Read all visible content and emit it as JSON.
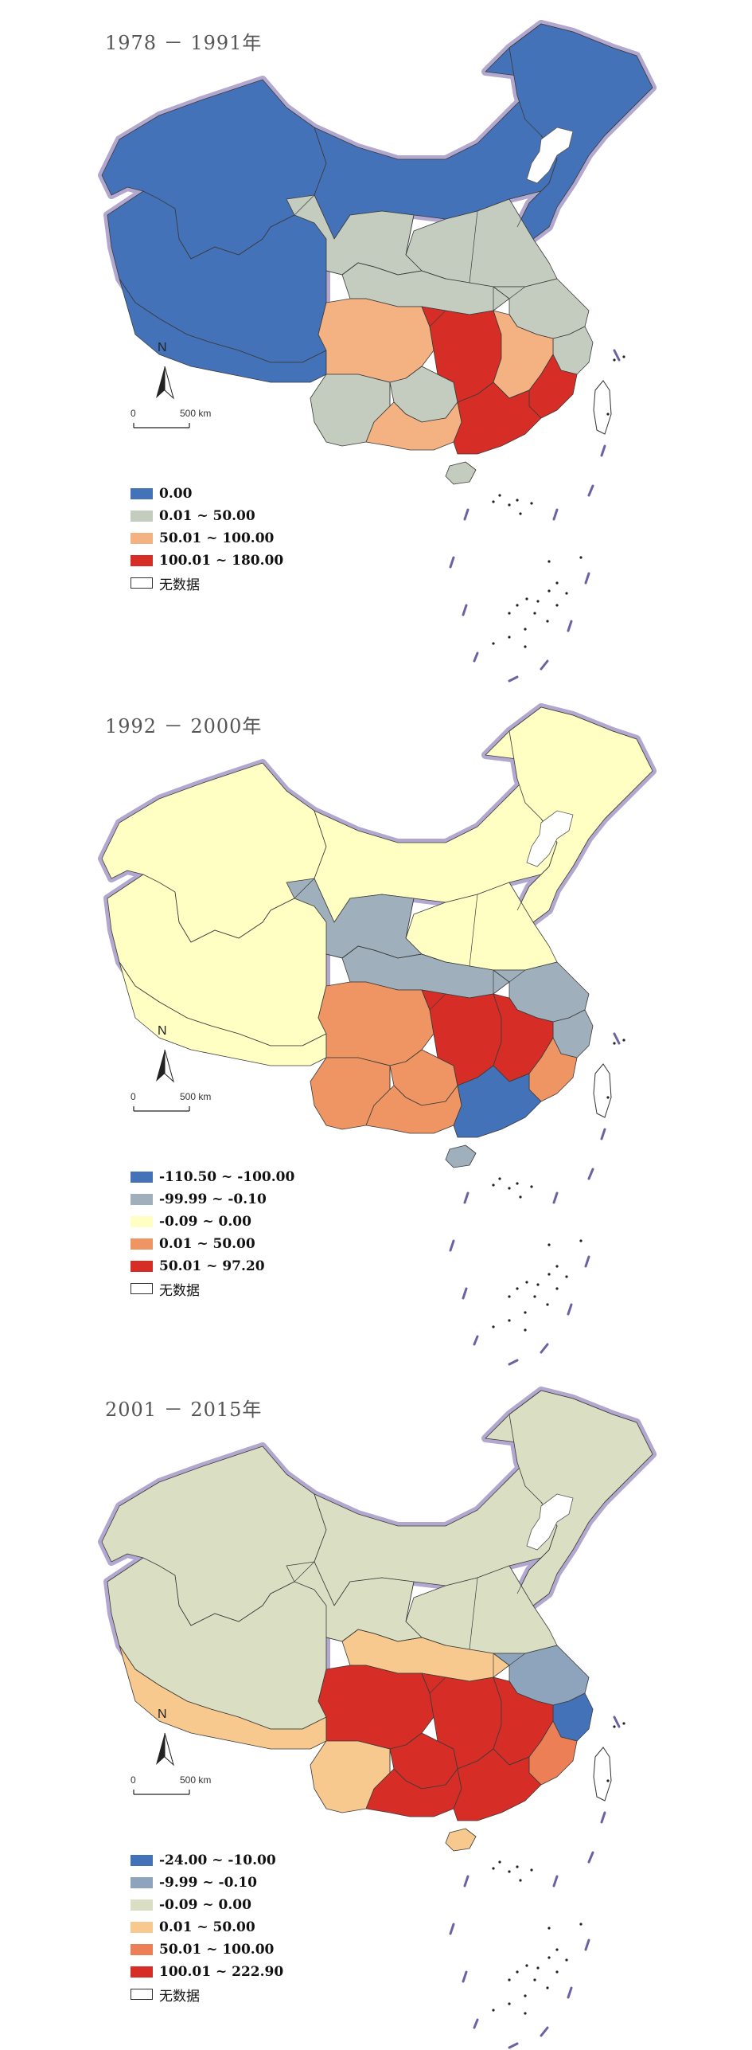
{
  "panels": [
    {
      "title": "1978 － 1991年",
      "legend": [
        {
          "label": "0.00",
          "color": "#4472b8"
        },
        {
          "label": "0.01 ~ 50.00",
          "color": "#c3ccbf"
        },
        {
          "label": "50.01 ~ 100.00",
          "color": "#f4b283"
        },
        {
          "label": "100.01 ~ 180.00",
          "color": "#d62e26"
        },
        {
          "label": "无数据",
          "color": "#ffffff"
        }
      ],
      "regions": {
        "west": "#4472b8",
        "north": "#4472b8",
        "northeast": "#4472b8",
        "northcentral": "#c3ccbf",
        "gansu": "#c3ccbf",
        "central": "#c3ccbf",
        "eastcoast": "#c3ccbf",
        "sichuan": "#f4b283",
        "yunnan": "#c3ccbf",
        "guizhou": "#c3ccbf",
        "hunan": "#d62e26",
        "jiangxi": "#f4b283",
        "fujian": "#d62e26",
        "guangxi": "#f4b283",
        "guangdong": "#d62e26",
        "hainan": "#c3ccbf"
      }
    },
    {
      "title": "1992 － 2000年",
      "legend": [
        {
          "label": "-110.50 ~ -100.00",
          "color": "#4472b8"
        },
        {
          "label": "-99.99 ~ -0.10",
          "color": "#9fb0bc"
        },
        {
          "label": "-0.09 ~ 0.00",
          "color": "#ffffc4"
        },
        {
          "label": "0.01 ~ 50.00",
          "color": "#ee9563"
        },
        {
          "label": "50.01 ~ 97.20",
          "color": "#d62e26"
        },
        {
          "label": "无数据",
          "color": "#ffffff"
        }
      ],
      "regions": {
        "west": "#ffffc4",
        "north": "#ffffc4",
        "northeast": "#ffffc4",
        "northcentral": "#ffffc4",
        "gansu": "#9fb0bc",
        "central": "#9fb0bc",
        "eastcoast": "#9fb0bc",
        "sichuan": "#ee9563",
        "yunnan": "#ee9563",
        "guizhou": "#ee9563",
        "hunan": "#d62e26",
        "jiangxi": "#d62e26",
        "fujian": "#ee9563",
        "guangxi": "#ee9563",
        "guangdong": "#4472b8",
        "hainan": "#9fb0bc"
      }
    },
    {
      "title": "2001 － 2015年",
      "legend": [
        {
          "label": "-24.00 ~ -10.00",
          "color": "#4472b8"
        },
        {
          "label": "-9.99 ~ -0.10",
          "color": "#8ea4bd"
        },
        {
          "label": "-0.09 ~ 0.00",
          "color": "#dadfc3"
        },
        {
          "label": "0.01 ~ 50.00",
          "color": "#f8c98e"
        },
        {
          "label": "50.01 ~ 100.00",
          "color": "#ec7f56"
        },
        {
          "label": "100.01 ~ 222.90",
          "color": "#d62e26"
        },
        {
          "label": "无数据",
          "color": "#ffffff"
        }
      ],
      "regions": {
        "west": "#dadfc3",
        "north": "#dadfc3",
        "northeast": "#dadfc3",
        "northcentral": "#dadfc3",
        "gansu": "#dadfc3",
        "central": "#f8c98e",
        "eastcoast": "#8ea4bd",
        "sichuan": "#d62e26",
        "yunnan": "#f8c98e",
        "guizhou": "#d62e26",
        "hunan": "#d62e26",
        "jiangxi": "#d62e26",
        "fujian": "#ec7f56",
        "guangxi": "#d62e26",
        "guangdong": "#d62e26",
        "hainan": "#f8c98e",
        "tibet": "#f8c98e",
        "zhejiang": "#4472b8"
      }
    }
  ],
  "compass_label": "N",
  "scale": {
    "zero": "0",
    "distance": "500 km"
  }
}
